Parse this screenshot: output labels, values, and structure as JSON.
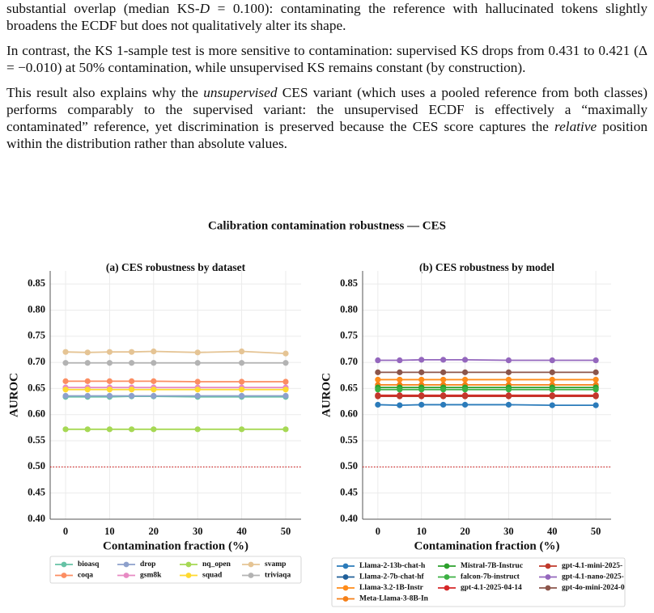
{
  "paragraphs": [
    [
      "substantial overlap (median KS-",
      "D",
      " = 0.100): contaminating the reference with hallucinated tokens slightly broadens the ECDF but does not qualitatively alter its shape."
    ],
    [
      "In contrast, the KS 1-sample test is more sensitive to contamination: supervised KS drops from 0.431 to 0.421 (Δ = −0.010) at 50% contamination, while unsupervised KS remains constant (by construction)."
    ],
    [
      "This result also explains why the ",
      "unsupervised",
      " CES variant (which uses a pooled reference from both classes) performs comparably to the supervised variant: the unsupervised ECDF is effectively a “maximally contaminated” reference, yet discrimination is preserved because the CES score captures the ",
      "relative",
      " position within the distribution rather than absolute values."
    ]
  ],
  "figure_title": "Calibration contamination robustness — CES",
  "chart_data": [
    {
      "type": "line",
      "title": "(a) CES robustness by dataset",
      "x_label": "Contamination fraction (%)",
      "y_label": "AUROC",
      "x": [
        0,
        5,
        10,
        15,
        20,
        30,
        40,
        50
      ],
      "xlim": [
        -3.5,
        53.5
      ],
      "xticks": [
        0,
        10,
        20,
        30,
        40,
        50
      ],
      "ylim": [
        0.4,
        0.875
      ],
      "yticks": [
        {
          "value": 0.4,
          "label": "0.40"
        },
        0.45,
        {
          "value": 0.5,
          "label": "0.50"
        },
        0.55,
        {
          "value": 0.6,
          "label": "0.60"
        },
        0.65,
        {
          "value": 0.7,
          "label": "0.70"
        },
        0.75,
        {
          "value": 0.8,
          "label": "0.80"
        },
        0.85
      ],
      "grid": true,
      "reference_line": {
        "value": 0.5,
        "color": "#cc0000"
      },
      "series": [
        {
          "name": "bioasq",
          "color": "#66c2a5",
          "values": [
            0.634,
            0.634,
            0.634,
            0.635,
            0.635,
            0.634,
            0.634,
            0.634
          ]
        },
        {
          "name": "coqa",
          "color": "#fc8d62",
          "values": [
            0.664,
            0.664,
            0.664,
            0.664,
            0.664,
            0.663,
            0.663,
            0.663
          ]
        },
        {
          "name": "drop",
          "color": "#8da0cb",
          "values": [
            0.636,
            0.636,
            0.636,
            0.636,
            0.636,
            0.636,
            0.636,
            0.636
          ]
        },
        {
          "name": "gsm8k",
          "color": "#e78ac3",
          "values": [
            0.652,
            0.652,
            0.652,
            0.652,
            0.652,
            0.652,
            0.652,
            0.652
          ]
        },
        {
          "name": "nq_open",
          "color": "#a6d854",
          "values": [
            0.572,
            0.572,
            0.572,
            0.572,
            0.572,
            0.572,
            0.572,
            0.572
          ]
        },
        {
          "name": "squad",
          "color": "#ffd92f",
          "values": [
            0.648,
            0.648,
            0.648,
            0.648,
            0.648,
            0.648,
            0.648,
            0.648
          ]
        },
        {
          "name": "svamp",
          "color": "#e5c494",
          "values": [
            0.72,
            0.719,
            0.72,
            0.72,
            0.721,
            0.719,
            0.721,
            0.717
          ]
        },
        {
          "name": "triviaqa",
          "color": "#b3b3b3",
          "values": [
            0.699,
            0.699,
            0.699,
            0.699,
            0.699,
            0.699,
            0.699,
            0.699
          ]
        }
      ]
    },
    {
      "type": "line",
      "title": "(b) CES robustness by model",
      "x_label": "Contamination fraction (%)",
      "y_label": "AUROC",
      "x": [
        0,
        5,
        10,
        15,
        20,
        30,
        40,
        50
      ],
      "xlim": [
        -3.5,
        53.5
      ],
      "xticks": [
        0,
        10,
        20,
        30,
        40,
        50
      ],
      "ylim": [
        0.4,
        0.875
      ],
      "yticks": [
        {
          "value": 0.4,
          "label": "0.40"
        },
        0.45,
        {
          "value": 0.5,
          "label": "0.50"
        },
        0.55,
        {
          "value": 0.6,
          "label": "0.60"
        },
        0.65,
        {
          "value": 0.7,
          "label": "0.70"
        },
        0.75,
        {
          "value": 0.8,
          "label": "0.80"
        },
        0.85
      ],
      "grid": true,
      "reference_line": {
        "value": 0.5,
        "color": "#cc0000"
      },
      "series": [
        {
          "name": "Llama-2-13b-chat-h",
          "color": "#2b7bba",
          "values": [
            0.619,
            0.618,
            0.619,
            0.619,
            0.619,
            0.619,
            0.618,
            0.618
          ]
        },
        {
          "name": "Llama-2-7b-chat-hf",
          "color": "#1f5f99",
          "values": [
            0.636,
            0.636,
            0.636,
            0.636,
            0.636,
            0.636,
            0.636,
            0.636
          ]
        },
        {
          "name": "Llama-3.2-1B-Instr",
          "color": "#ff8c1a",
          "values": [
            0.667,
            0.667,
            0.667,
            0.667,
            0.667,
            0.667,
            0.667,
            0.667
          ]
        },
        {
          "name": "Meta-Llama-3-8B-In",
          "color": "#f57f17",
          "values": [
            0.657,
            0.657,
            0.657,
            0.657,
            0.657,
            0.657,
            0.657,
            0.657
          ]
        },
        {
          "name": "Mistral-7B-Instruc",
          "color": "#2ca02c",
          "values": [
            0.652,
            0.652,
            0.652,
            0.652,
            0.652,
            0.652,
            0.652,
            0.652
          ]
        },
        {
          "name": "falcon-7b-instruct",
          "color": "#3cb043",
          "values": [
            0.648,
            0.648,
            0.648,
            0.648,
            0.648,
            0.648,
            0.648,
            0.648
          ]
        },
        {
          "name": "gpt-4.1-2025-04-14",
          "color": "#d62728",
          "values": [
            0.637,
            0.637,
            0.637,
            0.637,
            0.637,
            0.637,
            0.637,
            0.637
          ]
        },
        {
          "name": "gpt-4.1-mini-2025-",
          "color": "#c0392b",
          "values": [
            0.635,
            0.635,
            0.635,
            0.635,
            0.635,
            0.635,
            0.635,
            0.635
          ]
        },
        {
          "name": "gpt-4.1-nano-2025-",
          "color": "#9467bd",
          "values": [
            0.704,
            0.704,
            0.705,
            0.705,
            0.705,
            0.704,
            0.704,
            0.704
          ]
        },
        {
          "name": "gpt-4o-mini-2024-0",
          "color": "#8c564b",
          "values": [
            0.681,
            0.681,
            0.681,
            0.681,
            0.681,
            0.681,
            0.681,
            0.681
          ]
        }
      ]
    }
  ]
}
